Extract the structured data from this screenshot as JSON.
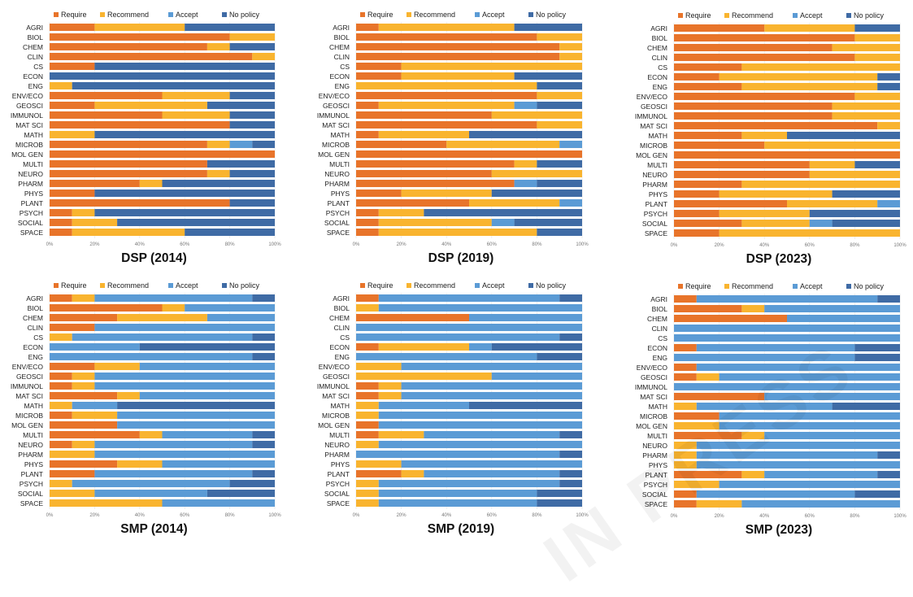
{
  "watermark": "IN PRESS",
  "legend_labels": [
    "Require",
    "Recommend",
    "Accept",
    "No policy"
  ],
  "colors": {
    "Require": "#E8742A",
    "Recommend": "#F9B42F",
    "Accept": "#5B9BD5",
    "No policy": "#3F6BA5"
  },
  "chart_data": [
    {
      "type": "bar",
      "orientation": "horizontal",
      "stacked": true,
      "title": "DSP (2014)",
      "categories": [
        "AGRI",
        "BIOL",
        "CHEM",
        "CLIN",
        "CS",
        "ECON",
        "ENG",
        "ENV/ECO",
        "GEOSCI",
        "IMMUNOL",
        "MAT SCI",
        "MATH",
        "MICROB",
        "MOL GEN",
        "MULTI",
        "NEURO",
        "PHARM",
        "PHYS",
        "PLANT",
        "PSYCH",
        "SOCIAL",
        "SPACE"
      ],
      "series": [
        {
          "name": "Require",
          "values": [
            20,
            80,
            70,
            90,
            20,
            0,
            0,
            50,
            20,
            50,
            80,
            0,
            70,
            100,
            70,
            70,
            40,
            20,
            80,
            10,
            10,
            10
          ]
        },
        {
          "name": "Recommend",
          "values": [
            40,
            20,
            10,
            10,
            0,
            0,
            10,
            30,
            50,
            30,
            0,
            20,
            10,
            0,
            0,
            10,
            10,
            0,
            0,
            10,
            20,
            50
          ]
        },
        {
          "name": "Accept",
          "values": [
            0,
            0,
            0,
            0,
            0,
            0,
            0,
            0,
            0,
            0,
            0,
            0,
            10,
            0,
            0,
            0,
            0,
            0,
            0,
            0,
            0,
            0
          ]
        },
        {
          "name": "No policy",
          "values": [
            40,
            0,
            20,
            0,
            80,
            100,
            90,
            20,
            30,
            20,
            20,
            80,
            10,
            0,
            30,
            20,
            50,
            80,
            20,
            80,
            70,
            40
          ]
        }
      ],
      "x_ticks": [
        "0%",
        "20%",
        "40%",
        "60%",
        "80%",
        "100%"
      ],
      "xlim": [
        0,
        100
      ],
      "legend": "top"
    },
    {
      "type": "bar",
      "orientation": "horizontal",
      "stacked": true,
      "title": "DSP (2019)",
      "categories": [
        "AGRI",
        "BIOL",
        "CHEM",
        "CLIN",
        "CS",
        "ECON",
        "ENG",
        "ENV/ECO",
        "GEOSCI",
        "IMMUNOL",
        "MAT SCI",
        "MATH",
        "MICROB",
        "MOL GEN",
        "MULTI",
        "NEURO",
        "PHARM",
        "PHYS",
        "PLANT",
        "PSYCH",
        "SOCIAL",
        "SPACE"
      ],
      "series": [
        {
          "name": "Require",
          "values": [
            10,
            80,
            90,
            90,
            20,
            20,
            0,
            80,
            10,
            60,
            80,
            10,
            40,
            100,
            70,
            60,
            70,
            20,
            50,
            10,
            10,
            10
          ]
        },
        {
          "name": "Recommend",
          "values": [
            60,
            20,
            10,
            10,
            80,
            50,
            80,
            20,
            60,
            40,
            20,
            40,
            50,
            0,
            10,
            40,
            0,
            40,
            40,
            20,
            50,
            70
          ]
        },
        {
          "name": "Accept",
          "values": [
            0,
            0,
            0,
            0,
            0,
            0,
            0,
            0,
            10,
            0,
            0,
            0,
            10,
            0,
            0,
            0,
            10,
            0,
            10,
            0,
            10,
            0
          ]
        },
        {
          "name": "No policy",
          "values": [
            30,
            0,
            0,
            0,
            0,
            30,
            20,
            0,
            20,
            0,
            0,
            50,
            0,
            0,
            20,
            0,
            20,
            40,
            0,
            70,
            30,
            20
          ]
        }
      ],
      "x_ticks": [
        "0%",
        "20%",
        "40%",
        "60%",
        "80%",
        "100%"
      ],
      "xlim": [
        0,
        100
      ],
      "legend": "top"
    },
    {
      "type": "bar",
      "orientation": "horizontal",
      "stacked": true,
      "title": "DSP (2023)",
      "categories": [
        "AGRI",
        "BIOL",
        "CHEM",
        "CLIN",
        "CS",
        "ECON",
        "ENG",
        "ENV/ECO",
        "GEOSCI",
        "IMMUNOL",
        "MAT SCI",
        "MATH",
        "MICROB",
        "MOL GEN",
        "MULTI",
        "NEURO",
        "PHARM",
        "PHYS",
        "PLANT",
        "PSYCH",
        "SOCIAL",
        "SPACE"
      ],
      "series": [
        {
          "name": "Require",
          "values": [
            40,
            80,
            70,
            80,
            30,
            20,
            30,
            80,
            70,
            70,
            90,
            30,
            40,
            100,
            60,
            60,
            30,
            20,
            50,
            20,
            30,
            20
          ]
        },
        {
          "name": "Recommend",
          "values": [
            40,
            20,
            30,
            20,
            70,
            70,
            60,
            20,
            30,
            30,
            10,
            20,
            60,
            0,
            20,
            40,
            70,
            50,
            40,
            40,
            30,
            80
          ]
        },
        {
          "name": "Accept",
          "values": [
            0,
            0,
            0,
            0,
            0,
            0,
            0,
            0,
            0,
            0,
            0,
            0,
            0,
            0,
            0,
            0,
            0,
            0,
            10,
            0,
            10,
            0
          ]
        },
        {
          "name": "No policy",
          "values": [
            20,
            0,
            0,
            0,
            0,
            10,
            10,
            0,
            0,
            0,
            0,
            50,
            0,
            0,
            20,
            0,
            0,
            30,
            0,
            40,
            30,
            0
          ]
        }
      ],
      "x_ticks": [
        "0%",
        "20%",
        "40%",
        "60%",
        "80%",
        "100%"
      ],
      "xlim": [
        0,
        100
      ],
      "legend": "top"
    },
    {
      "type": "bar",
      "orientation": "horizontal",
      "stacked": true,
      "title": "SMP (2014)",
      "categories": [
        "AGRI",
        "BIOL",
        "CHEM",
        "CLIN",
        "CS",
        "ECON",
        "ENG",
        "ENV/ECO",
        "GEOSCI",
        "IMMUNOL",
        "MAT SCI",
        "MATH",
        "MICROB",
        "MOL GEN",
        "MULTI",
        "NEURO",
        "PHARM",
        "PHYS",
        "PLANT",
        "PSYCH",
        "SOCIAL",
        "SPACE"
      ],
      "series": [
        {
          "name": "Require",
          "values": [
            10,
            50,
            30,
            20,
            0,
            0,
            0,
            20,
            10,
            10,
            30,
            0,
            10,
            30,
            40,
            10,
            0,
            30,
            20,
            0,
            0,
            0
          ]
        },
        {
          "name": "Recommend",
          "values": [
            10,
            10,
            40,
            0,
            10,
            0,
            0,
            20,
            10,
            10,
            10,
            10,
            20,
            0,
            10,
            10,
            20,
            20,
            0,
            10,
            20,
            50
          ]
        },
        {
          "name": "Accept",
          "values": [
            70,
            40,
            30,
            80,
            80,
            40,
            90,
            60,
            80,
            80,
            60,
            20,
            70,
            70,
            40,
            70,
            80,
            50,
            70,
            70,
            50,
            50
          ]
        },
        {
          "name": "No policy",
          "values": [
            10,
            0,
            0,
            0,
            10,
            60,
            10,
            0,
            0,
            0,
            0,
            70,
            0,
            0,
            10,
            10,
            0,
            0,
            10,
            20,
            30,
            0
          ]
        }
      ],
      "x_ticks": [
        "0%",
        "20%",
        "40%",
        "60%",
        "80%",
        "100%"
      ],
      "xlim": [
        0,
        100
      ],
      "legend": "top"
    },
    {
      "type": "bar",
      "orientation": "horizontal",
      "stacked": true,
      "title": "SMP (2019)",
      "categories": [
        "AGRI",
        "BIOL",
        "CHEM",
        "CLIN",
        "CS",
        "ECON",
        "ENG",
        "ENV/ECO",
        "GEOSCI",
        "IMMUNOL",
        "MAT SCI",
        "MATH",
        "MICROB",
        "MOL GEN",
        "MULTI",
        "NEURO",
        "PHARM",
        "PHYS",
        "PLANT",
        "PSYCH",
        "SOCIAL",
        "SPACE"
      ],
      "series": [
        {
          "name": "Require",
          "values": [
            10,
            0,
            50,
            0,
            0,
            10,
            0,
            0,
            0,
            10,
            10,
            0,
            0,
            10,
            10,
            0,
            0,
            0,
            20,
            0,
            0,
            0
          ]
        },
        {
          "name": "Recommend",
          "values": [
            0,
            10,
            0,
            0,
            0,
            40,
            0,
            20,
            60,
            10,
            10,
            10,
            10,
            0,
            20,
            10,
            0,
            20,
            10,
            10,
            10,
            10
          ]
        },
        {
          "name": "Accept",
          "values": [
            80,
            90,
            50,
            100,
            90,
            10,
            80,
            80,
            40,
            80,
            80,
            40,
            90,
            90,
            60,
            90,
            90,
            80,
            60,
            80,
            70,
            70
          ]
        },
        {
          "name": "No policy",
          "values": [
            10,
            0,
            0,
            0,
            10,
            40,
            20,
            0,
            0,
            0,
            0,
            50,
            0,
            0,
            10,
            0,
            10,
            0,
            10,
            10,
            20,
            20
          ]
        }
      ],
      "x_ticks": [
        "0%",
        "20%",
        "40%",
        "60%",
        "80%",
        "100%"
      ],
      "xlim": [
        0,
        100
      ],
      "legend": "top"
    },
    {
      "type": "bar",
      "orientation": "horizontal",
      "stacked": true,
      "title": "SMP (2023)",
      "categories": [
        "AGRI",
        "BIOL",
        "CHEM",
        "CLIN",
        "CS",
        "ECON",
        "ENG",
        "ENV/ECO",
        "GEOSCI",
        "IMMUNOL",
        "MAT SCI",
        "MATH",
        "MICROB",
        "MOL GEN",
        "MULTI",
        "NEURO",
        "PHARM",
        "PHYS",
        "PLANT",
        "PSYCH",
        "SOCIAL",
        "SPACE"
      ],
      "series": [
        {
          "name": "Require",
          "values": [
            10,
            30,
            50,
            0,
            0,
            10,
            0,
            10,
            10,
            0,
            40,
            0,
            20,
            0,
            30,
            0,
            0,
            0,
            30,
            0,
            10,
            10
          ]
        },
        {
          "name": "Recommend",
          "values": [
            0,
            10,
            0,
            0,
            0,
            0,
            0,
            0,
            10,
            0,
            0,
            10,
            0,
            20,
            10,
            10,
            10,
            10,
            10,
            20,
            0,
            20
          ]
        },
        {
          "name": "Accept",
          "values": [
            80,
            60,
            50,
            100,
            100,
            70,
            80,
            90,
            80,
            100,
            60,
            60,
            80,
            80,
            60,
            90,
            80,
            90,
            50,
            80,
            70,
            70
          ]
        },
        {
          "name": "No policy",
          "values": [
            10,
            0,
            0,
            0,
            0,
            20,
            20,
            0,
            0,
            0,
            0,
            30,
            0,
            0,
            0,
            0,
            10,
            0,
            10,
            0,
            20,
            0
          ]
        }
      ],
      "x_ticks": [
        "0%",
        "20%",
        "40%",
        "60%",
        "80%",
        "100%"
      ],
      "xlim": [
        0,
        100
      ],
      "legend": "top"
    }
  ]
}
